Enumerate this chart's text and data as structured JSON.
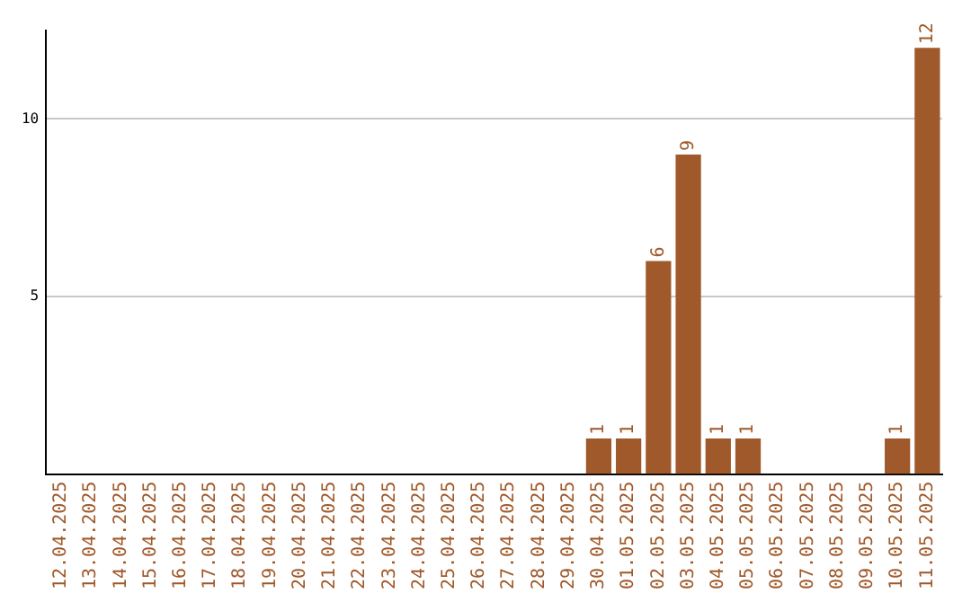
{
  "chart_data": {
    "type": "bar",
    "categories": [
      "12.04.2025",
      "13.04.2025",
      "14.04.2025",
      "15.04.2025",
      "16.04.2025",
      "17.04.2025",
      "18.04.2025",
      "19.04.2025",
      "20.04.2025",
      "21.04.2025",
      "22.04.2025",
      "23.04.2025",
      "24.04.2025",
      "25.04.2025",
      "26.04.2025",
      "27.04.2025",
      "28.04.2025",
      "29.04.2025",
      "30.04.2025",
      "01.05.2025",
      "02.05.2025",
      "03.05.2025",
      "04.05.2025",
      "05.05.2025",
      "06.05.2025",
      "07.05.2025",
      "08.05.2025",
      "09.05.2025",
      "10.05.2025",
      "11.05.2025"
    ],
    "values": [
      0,
      0,
      0,
      0,
      0,
      0,
      0,
      0,
      0,
      0,
      0,
      0,
      0,
      0,
      0,
      0,
      0,
      0,
      1,
      1,
      6,
      9,
      1,
      1,
      0,
      0,
      0,
      0,
      1,
      12
    ],
    "value_labels": [
      null,
      null,
      null,
      null,
      null,
      null,
      null,
      null,
      null,
      null,
      null,
      null,
      null,
      null,
      null,
      null,
      null,
      null,
      "1",
      "1",
      "6",
      "9",
      "1",
      "1",
      null,
      null,
      null,
      null,
      "1",
      "12"
    ],
    "color": "#a0592a",
    "ylim": [
      0,
      12.5
    ],
    "yticks": [
      5,
      10
    ],
    "grid": "y"
  }
}
